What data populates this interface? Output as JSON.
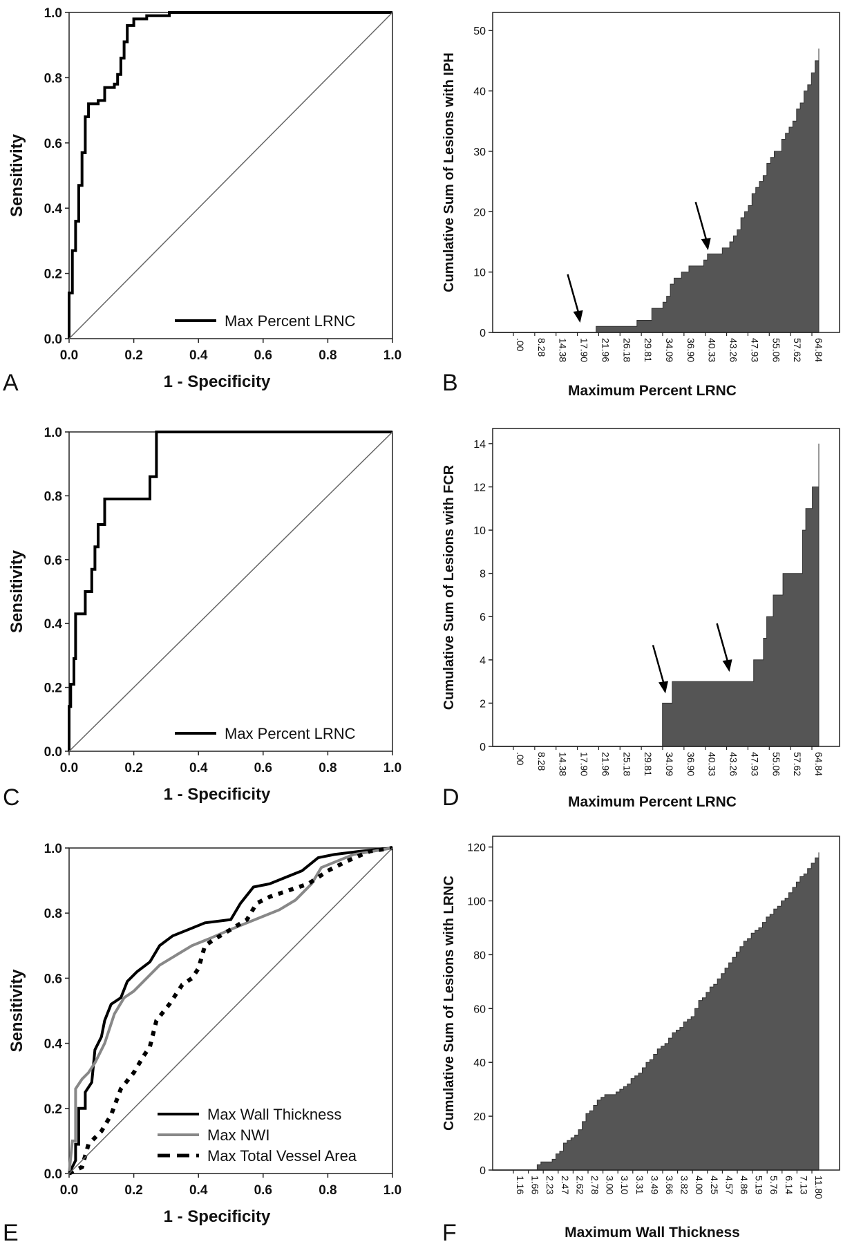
{
  "colors": {
    "area_fill": "#555555",
    "roc_black": "#000000",
    "roc_gray": "#888888",
    "diagonal": "#666666"
  },
  "chart_data": [
    {
      "panel": "A",
      "type": "line",
      "xlabel": "1 - Specificity",
      "ylabel": "Sensitivity",
      "xlim": [
        0,
        1
      ],
      "ylim": [
        0,
        1
      ],
      "xticks": [
        "0.0",
        "0.2",
        "0.4",
        "0.6",
        "0.8",
        "1.0"
      ],
      "yticks": [
        "0.0",
        "0.2",
        "0.4",
        "0.6",
        "0.8",
        "1.0"
      ],
      "legend": {
        "position": "bottom-right",
        "entries": [
          "Max Percent LRNC"
        ]
      },
      "series": [
        {
          "name": "Max Percent LRNC",
          "style": "solid-black",
          "points": [
            [
              0,
              0
            ],
            [
              0,
              0.14
            ],
            [
              0.01,
              0.14
            ],
            [
              0.01,
              0.27
            ],
            [
              0.02,
              0.27
            ],
            [
              0.02,
              0.36
            ],
            [
              0.03,
              0.36
            ],
            [
              0.03,
              0.47
            ],
            [
              0.04,
              0.47
            ],
            [
              0.04,
              0.57
            ],
            [
              0.05,
              0.57
            ],
            [
              0.05,
              0.68
            ],
            [
              0.06,
              0.68
            ],
            [
              0.06,
              0.72
            ],
            [
              0.09,
              0.72
            ],
            [
              0.09,
              0.73
            ],
            [
              0.11,
              0.73
            ],
            [
              0.11,
              0.77
            ],
            [
              0.14,
              0.77
            ],
            [
              0.14,
              0.78
            ],
            [
              0.15,
              0.78
            ],
            [
              0.15,
              0.81
            ],
            [
              0.16,
              0.81
            ],
            [
              0.16,
              0.86
            ],
            [
              0.17,
              0.86
            ],
            [
              0.17,
              0.91
            ],
            [
              0.18,
              0.91
            ],
            [
              0.18,
              0.96
            ],
            [
              0.2,
              0.96
            ],
            [
              0.2,
              0.98
            ],
            [
              0.24,
              0.98
            ],
            [
              0.24,
              0.99
            ],
            [
              0.31,
              0.99
            ],
            [
              0.31,
              1.0
            ],
            [
              1.0,
              1.0
            ]
          ]
        },
        {
          "name": "",
          "style": "diagonal",
          "points": [
            [
              0,
              0
            ],
            [
              1,
              1
            ]
          ]
        }
      ]
    },
    {
      "panel": "B",
      "type": "area",
      "xlabel": "Maximum Percent LRNC",
      "ylabel": "Cumulative Sum of Lesions with IPH",
      "ylim": [
        0,
        53
      ],
      "yticks": [
        "0",
        "10",
        "20",
        "30",
        "40",
        "50"
      ],
      "xtick_labels": [
        ".00",
        "8.28",
        "14.38",
        "17.90",
        "21.96",
        "26.18",
        "29.81",
        "34.09",
        "36.90",
        "40.33",
        "43.26",
        "47.93",
        "55.06",
        "57.62",
        "64.84"
      ],
      "arrows_at": [
        3,
        9
      ],
      "values": [
        0,
        0,
        0,
        0,
        0,
        0,
        0,
        0,
        0,
        0,
        0,
        0,
        0,
        0,
        0,
        0,
        0,
        0,
        0,
        0,
        0,
        0,
        0,
        0,
        0,
        0,
        1,
        1,
        1,
        1,
        1,
        1,
        1,
        1,
        1,
        1,
        1,
        2,
        2,
        2,
        2,
        4,
        4,
        4,
        5,
        6,
        8,
        9,
        9,
        10,
        10,
        11,
        11,
        11,
        11,
        12,
        13,
        13,
        13,
        13,
        14,
        14,
        15,
        16,
        17,
        19,
        20,
        21,
        23,
        24,
        25,
        26,
        28,
        29,
        30,
        30,
        32,
        33,
        34,
        35,
        37,
        38,
        40,
        41,
        43,
        45,
        47
      ]
    },
    {
      "panel": "C",
      "type": "line",
      "xlabel": "1 - Specificity",
      "ylabel": "Sensitivity",
      "xlim": [
        0,
        1
      ],
      "ylim": [
        0,
        1
      ],
      "xticks": [
        "0.0",
        "0.2",
        "0.4",
        "0.6",
        "0.8",
        "1.0"
      ],
      "yticks": [
        "0.0",
        "0.2",
        "0.4",
        "0.6",
        "0.8",
        "1.0"
      ],
      "legend": {
        "position": "bottom-right",
        "entries": [
          "Max Percent LRNC"
        ]
      },
      "series": [
        {
          "name": "Max Percent LRNC",
          "style": "solid-black",
          "points": [
            [
              0,
              0
            ],
            [
              0,
              0.14
            ],
            [
              0.005,
              0.14
            ],
            [
              0.005,
              0.21
            ],
            [
              0.015,
              0.21
            ],
            [
              0.015,
              0.29
            ],
            [
              0.02,
              0.29
            ],
            [
              0.02,
              0.43
            ],
            [
              0.05,
              0.43
            ],
            [
              0.05,
              0.5
            ],
            [
              0.07,
              0.5
            ],
            [
              0.07,
              0.57
            ],
            [
              0.08,
              0.57
            ],
            [
              0.08,
              0.64
            ],
            [
              0.09,
              0.64
            ],
            [
              0.09,
              0.71
            ],
            [
              0.11,
              0.71
            ],
            [
              0.11,
              0.79
            ],
            [
              0.25,
              0.79
            ],
            [
              0.25,
              0.86
            ],
            [
              0.27,
              0.86
            ],
            [
              0.27,
              1.0
            ],
            [
              1.0,
              1.0
            ]
          ]
        },
        {
          "name": "",
          "style": "diagonal",
          "points": [
            [
              0,
              0
            ],
            [
              1,
              1
            ]
          ]
        }
      ]
    },
    {
      "panel": "D",
      "type": "area",
      "xlabel": "Maximum Percent LRNC",
      "ylabel": "Cumulative Sum of Lesions with FCR",
      "ylim": [
        0,
        14.7
      ],
      "yticks": [
        "0",
        "2",
        "4",
        "6",
        "8",
        "10",
        "12",
        "14"
      ],
      "xtick_labels": [
        ".00",
        "8.28",
        "14.38",
        "17.90",
        "21.96",
        "25.18",
        "29.81",
        "34.09",
        "36.90",
        "40.33",
        "43.26",
        "47.93",
        "55.06",
        "57.62",
        "64.84"
      ],
      "arrows_at": [
        7,
        10
      ],
      "values": [
        0,
        0,
        0,
        0,
        0,
        0,
        0,
        0,
        0,
        0,
        0,
        0,
        0,
        0,
        0,
        0,
        0,
        0,
        0,
        0,
        0,
        0,
        0,
        0,
        0,
        0,
        0,
        0,
        0,
        0,
        0,
        0,
        0,
        0,
        0,
        0,
        0,
        0,
        0,
        0,
        0,
        0,
        0,
        0,
        0,
        0,
        0,
        0,
        0,
        0,
        2,
        2,
        2,
        3,
        3,
        3,
        3,
        3,
        3,
        3,
        3,
        3,
        3,
        3,
        3,
        3,
        3,
        3,
        3,
        3,
        3,
        3,
        3,
        3,
        3,
        3,
        3,
        3,
        4,
        4,
        4,
        5,
        6,
        6,
        7,
        7,
        7,
        8,
        8,
        8,
        8,
        8,
        8,
        10,
        11,
        11,
        12,
        12,
        14
      ]
    },
    {
      "panel": "E",
      "type": "line",
      "xlabel": "1 - Specificity",
      "ylabel": "Sensitivity",
      "xlim": [
        0,
        1
      ],
      "ylim": [
        0,
        1
      ],
      "xticks": [
        "0.0",
        "0.2",
        "0.4",
        "0.6",
        "0.8",
        "1.0"
      ],
      "yticks": [
        "0.0",
        "0.2",
        "0.4",
        "0.6",
        "0.8",
        "1.0"
      ],
      "legend": {
        "position": "bottom-right",
        "entries": [
          "Max Wall Thickness",
          "Max NWI",
          "Max Total Vessel Area"
        ]
      },
      "series": [
        {
          "name": "Max Wall Thickness",
          "style": "solid-black",
          "points": [
            [
              0,
              0
            ],
            [
              0.02,
              0.04
            ],
            [
              0.02,
              0.09
            ],
            [
              0.03,
              0.09
            ],
            [
              0.03,
              0.2
            ],
            [
              0.05,
              0.2
            ],
            [
              0.05,
              0.25
            ],
            [
              0.07,
              0.28
            ],
            [
              0.08,
              0.38
            ],
            [
              0.1,
              0.42
            ],
            [
              0.11,
              0.47
            ],
            [
              0.13,
              0.52
            ],
            [
              0.16,
              0.54
            ],
            [
              0.18,
              0.59
            ],
            [
              0.21,
              0.62
            ],
            [
              0.25,
              0.65
            ],
            [
              0.28,
              0.7
            ],
            [
              0.32,
              0.73
            ],
            [
              0.37,
              0.75
            ],
            [
              0.42,
              0.77
            ],
            [
              0.5,
              0.78
            ],
            [
              0.53,
              0.83
            ],
            [
              0.57,
              0.88
            ],
            [
              0.62,
              0.89
            ],
            [
              0.67,
              0.91
            ],
            [
              0.72,
              0.93
            ],
            [
              0.77,
              0.97
            ],
            [
              0.82,
              0.98
            ],
            [
              0.9,
              0.99
            ],
            [
              1.0,
              1.0
            ]
          ]
        },
        {
          "name": "Max NWI",
          "style": "solid-gray",
          "points": [
            [
              0,
              0
            ],
            [
              0.01,
              0.1
            ],
            [
              0.02,
              0.1
            ],
            [
              0.02,
              0.26
            ],
            [
              0.04,
              0.29
            ],
            [
              0.06,
              0.31
            ],
            [
              0.08,
              0.34
            ],
            [
              0.11,
              0.4
            ],
            [
              0.14,
              0.49
            ],
            [
              0.17,
              0.54
            ],
            [
              0.2,
              0.56
            ],
            [
              0.24,
              0.6
            ],
            [
              0.28,
              0.64
            ],
            [
              0.33,
              0.67
            ],
            [
              0.38,
              0.7
            ],
            [
              0.43,
              0.72
            ],
            [
              0.5,
              0.75
            ],
            [
              0.55,
              0.77
            ],
            [
              0.6,
              0.79
            ],
            [
              0.65,
              0.81
            ],
            [
              0.7,
              0.84
            ],
            [
              0.75,
              0.89
            ],
            [
              0.78,
              0.94
            ],
            [
              0.83,
              0.96
            ],
            [
              0.88,
              0.98
            ],
            [
              0.94,
              0.99
            ],
            [
              1.0,
              1.0
            ]
          ]
        },
        {
          "name": "Max Total Vessel Area",
          "style": "dashed-black",
          "points": [
            [
              0,
              0
            ],
            [
              0.04,
              0.02
            ],
            [
              0.06,
              0.09
            ],
            [
              0.1,
              0.13
            ],
            [
              0.13,
              0.18
            ],
            [
              0.16,
              0.26
            ],
            [
              0.2,
              0.31
            ],
            [
              0.23,
              0.36
            ],
            [
              0.25,
              0.39
            ],
            [
              0.27,
              0.47
            ],
            [
              0.31,
              0.52
            ],
            [
              0.35,
              0.58
            ],
            [
              0.38,
              0.6
            ],
            [
              0.4,
              0.63
            ],
            [
              0.42,
              0.7
            ],
            [
              0.45,
              0.72
            ],
            [
              0.5,
              0.75
            ],
            [
              0.55,
              0.78
            ],
            [
              0.58,
              0.83
            ],
            [
              0.62,
              0.85
            ],
            [
              0.68,
              0.87
            ],
            [
              0.74,
              0.89
            ],
            [
              0.8,
              0.93
            ],
            [
              0.86,
              0.96
            ],
            [
              0.93,
              0.99
            ],
            [
              1.0,
              1.0
            ]
          ]
        },
        {
          "name": "",
          "style": "diagonal",
          "points": [
            [
              0,
              0
            ],
            [
              1,
              1
            ]
          ]
        }
      ]
    },
    {
      "panel": "F",
      "type": "area",
      "xlabel": "Maximum Wall Thickness",
      "ylabel": "Cumulative Sum of Lesions with LRNC",
      "ylim": [
        0,
        124
      ],
      "yticks": [
        "0",
        "20",
        "40",
        "60",
        "80",
        "100",
        "120"
      ],
      "xtick_labels": [
        "1.16",
        "1.66",
        "2.23",
        "2.47",
        "2.62",
        "2.78",
        "3.00",
        "3.10",
        "3.31",
        "3.49",
        "3.66",
        "3.82",
        "4.00",
        "4.25",
        "4.57",
        "4.86",
        "5.19",
        "5.76",
        "6.14",
        "7.13",
        "11.80"
      ],
      "arrows_at": [],
      "values": [
        0,
        0,
        0,
        0,
        0,
        0,
        0,
        0,
        0,
        0,
        2,
        3,
        3,
        3,
        4,
        6,
        7,
        10,
        11,
        12,
        13,
        15,
        18,
        21,
        22,
        24,
        26,
        27,
        28,
        28,
        28,
        29,
        30,
        31,
        32,
        34,
        35,
        36,
        38,
        40,
        41,
        43,
        45,
        46,
        47,
        49,
        51,
        52,
        53,
        55,
        56,
        57,
        60,
        63,
        64,
        66,
        68,
        69,
        71,
        73,
        75,
        77,
        79,
        81,
        83,
        85,
        86,
        88,
        89,
        90,
        92,
        94,
        95,
        97,
        98,
        100,
        101,
        103,
        105,
        107,
        109,
        110,
        112,
        114,
        116,
        118
      ]
    }
  ],
  "panels": {
    "A": {
      "letter": "A"
    },
    "B": {
      "letter": "B"
    },
    "C": {
      "letter": "C"
    },
    "D": {
      "letter": "D"
    },
    "E": {
      "letter": "E"
    },
    "F": {
      "letter": "F"
    }
  }
}
